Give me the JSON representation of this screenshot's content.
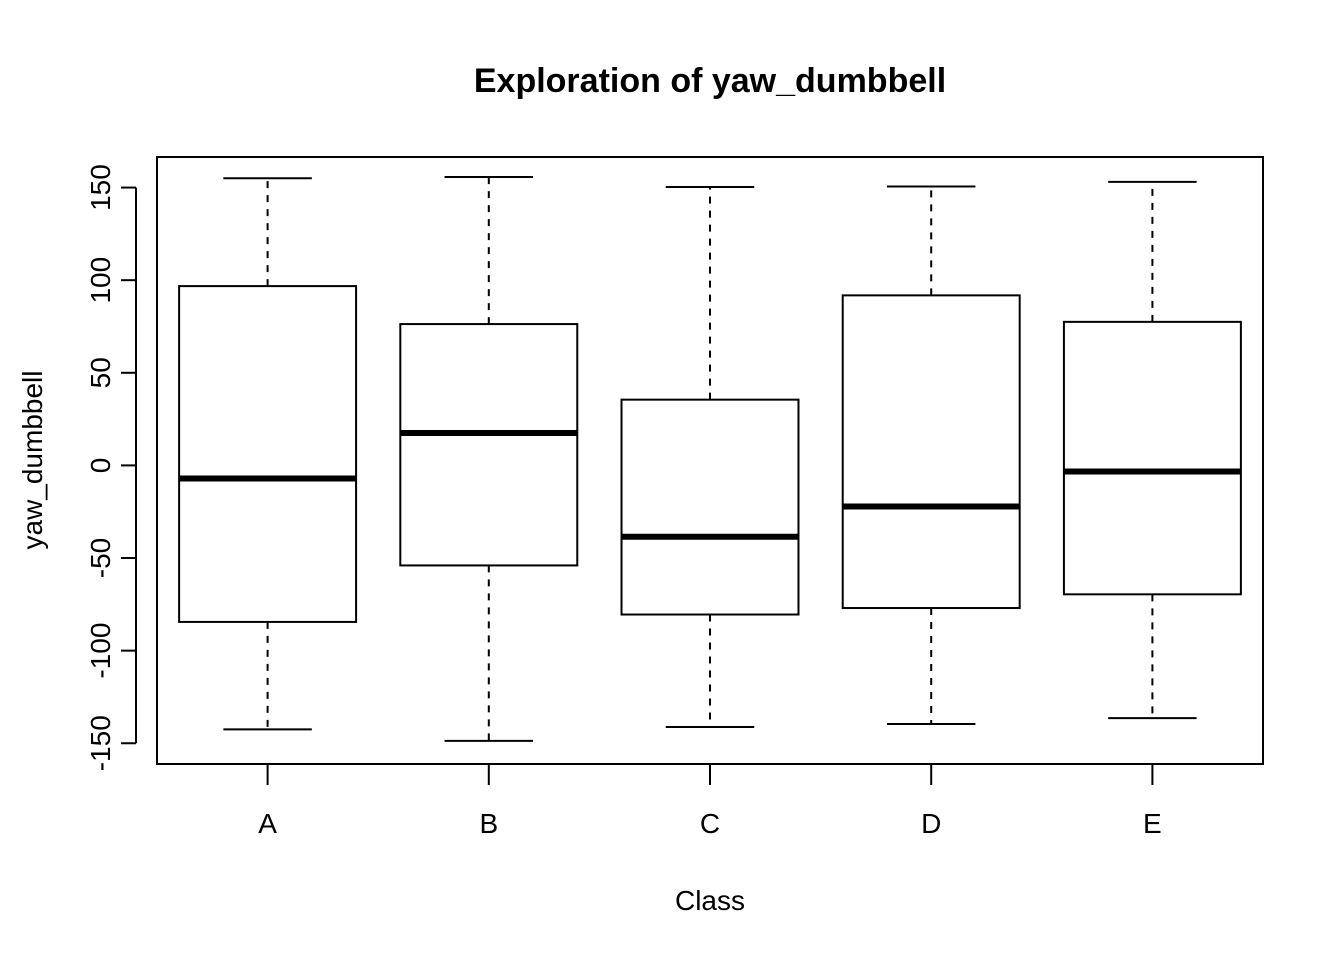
{
  "chart_data": {
    "type": "boxplot",
    "title": "Exploration of  yaw_dumbbell",
    "xlabel": "Class",
    "ylabel": "yaw_dumbbell",
    "categories": [
      "A",
      "B",
      "C",
      "D",
      "E"
    ],
    "ylim": [
      -161.2,
      166.5
    ],
    "yticks": [
      -150,
      -100,
      -50,
      0,
      50,
      100,
      150
    ],
    "grid": false,
    "legend": "none",
    "boxes": [
      {
        "category": "A",
        "whisker_low": -142.5,
        "q1": -84.5,
        "median": -7.1,
        "q3": 96.8,
        "whisker_high": 155.0
      },
      {
        "category": "B",
        "whisker_low": -148.7,
        "q1": -54.0,
        "median": 17.5,
        "q3": 76.3,
        "whisker_high": 155.7
      },
      {
        "category": "C",
        "whisker_low": -141.2,
        "q1": -80.5,
        "median": -38.5,
        "q3": 35.5,
        "whisker_high": 150.3
      },
      {
        "category": "D",
        "whisker_low": -139.6,
        "q1": -77.0,
        "median": -22.2,
        "q3": 91.8,
        "whisker_high": 150.6
      },
      {
        "category": "E",
        "whisker_low": -136.4,
        "q1": -69.6,
        "median": -3.3,
        "q3": 77.5,
        "whisker_high": 153.1
      }
    ]
  }
}
